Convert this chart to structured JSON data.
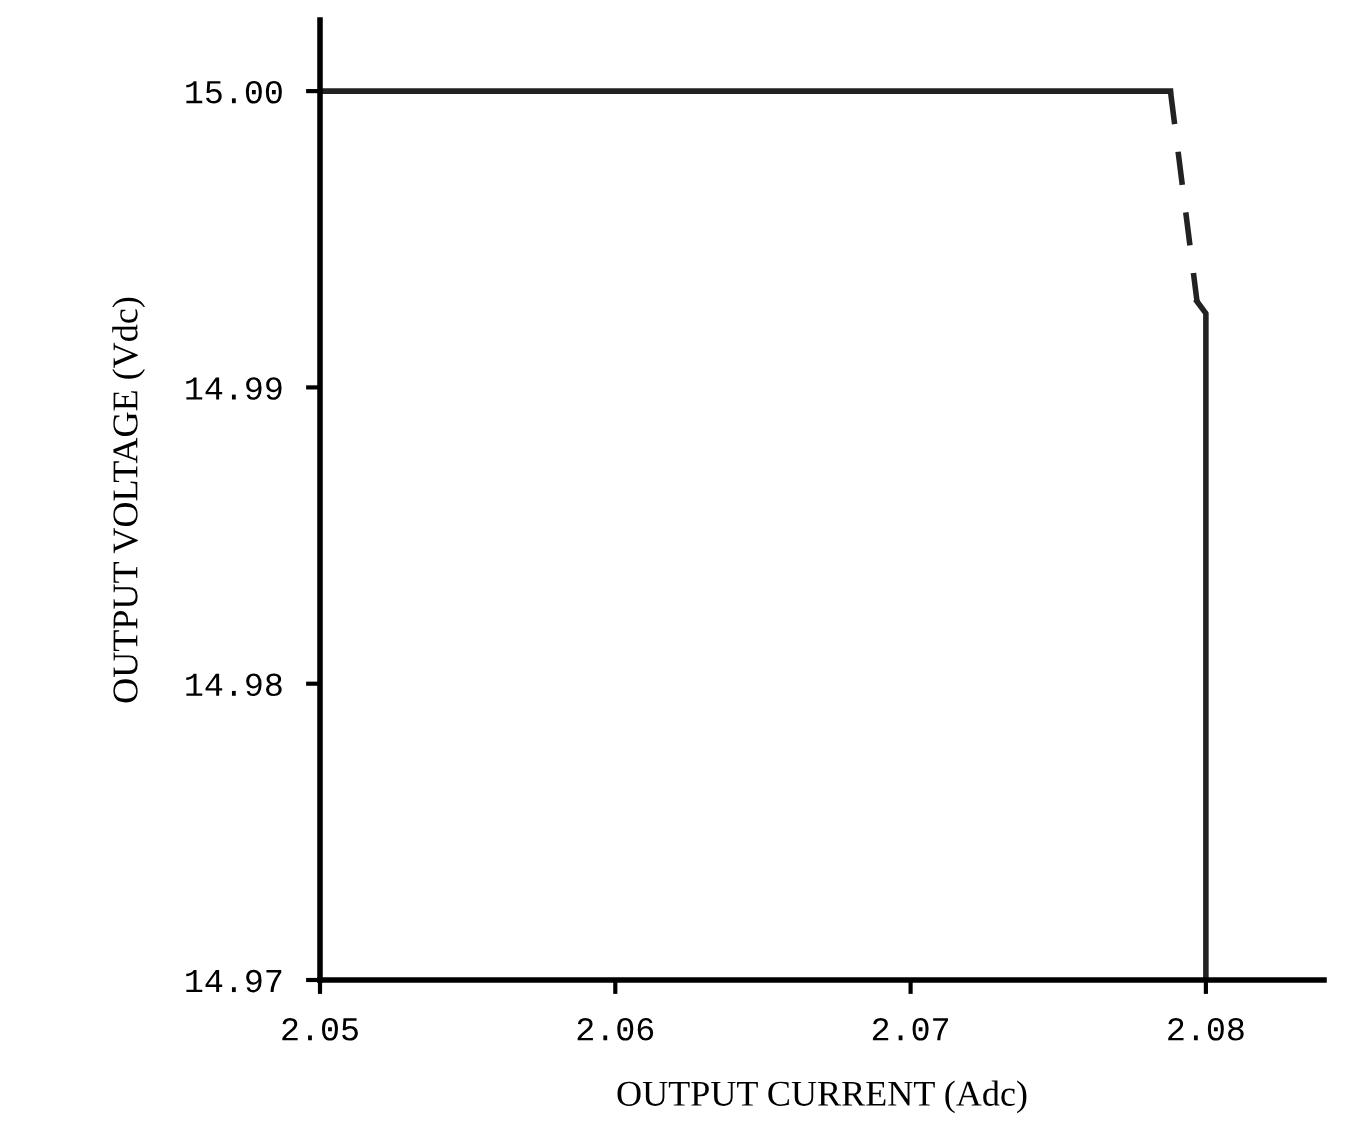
{
  "chart_data": {
    "type": "line",
    "xlabel": "OUTPUT CURRENT (Adc)",
    "ylabel": "OUTPUT VOLTAGE (Vdc)",
    "series": [
      {
        "color": "#222222",
        "line_style": "solid",
        "x": [
          2.05,
          2.0788
        ],
        "values": [
          15.0,
          15.0
        ]
      },
      {
        "color": "#222222",
        "line_style": "dashed",
        "x": [
          2.0788,
          2.0797
        ],
        "values": [
          15.0,
          14.9929
        ]
      },
      {
        "color": "#222222",
        "line_style": "solid",
        "x": [
          2.0797,
          2.08,
          2.08
        ],
        "values": [
          14.9929,
          14.9925,
          14.97
        ]
      }
    ],
    "xlim": [
      2.05,
      2.084
    ],
    "ylim": [
      14.97,
      15.0024
    ],
    "xticks": [
      2.05,
      2.06,
      2.07,
      2.08
    ],
    "yticks": [
      {
        "value": 14.97,
        "label": "14.97"
      },
      {
        "value": 14.98,
        "label": "14.98"
      },
      {
        "value": 14.99,
        "label": "14.99"
      },
      {
        "value": 15.0,
        "label": "15.00"
      }
    ],
    "grid": false,
    "marker": "none"
  }
}
